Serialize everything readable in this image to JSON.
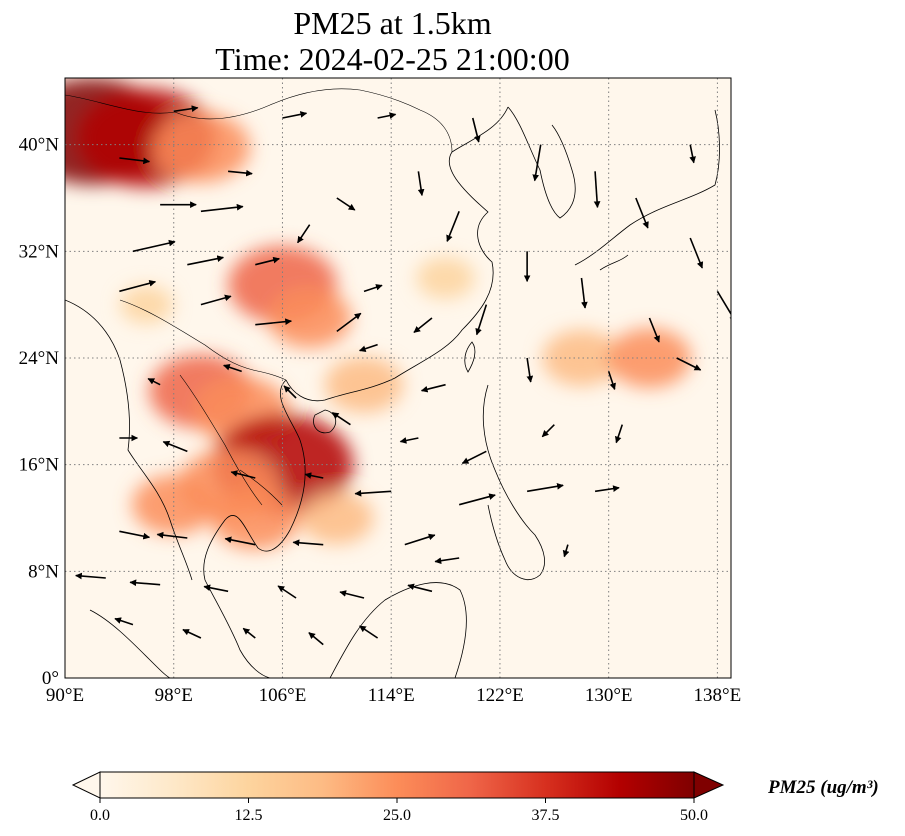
{
  "title": {
    "line1": "PM25 at 1.5km",
    "line2": "Time: 2024-02-25 21:00:00"
  },
  "map": {
    "lon_range": [
      90,
      139
    ],
    "lat_range": [
      0,
      45
    ],
    "xticks": [
      {
        "value": 90,
        "label": "90°E"
      },
      {
        "value": 98,
        "label": "98°E"
      },
      {
        "value": 106,
        "label": "106°E"
      },
      {
        "value": 114,
        "label": "114°E"
      },
      {
        "value": 122,
        "label": "122°E"
      },
      {
        "value": 130,
        "label": "130°E"
      },
      {
        "value": 138,
        "label": "138°E"
      }
    ],
    "yticks": [
      {
        "value": 0,
        "label": "0°"
      },
      {
        "value": 8,
        "label": "8°N"
      },
      {
        "value": 16,
        "label": "16°N"
      },
      {
        "value": 24,
        "label": "24°N"
      },
      {
        "value": 32,
        "label": "32°N"
      },
      {
        "value": 40,
        "label": "40°N"
      }
    ],
    "gridlines": "dotted",
    "variable": "PM25",
    "level": "1.5km"
  },
  "colorbar": {
    "label": "PM25 (ug/m³)",
    "ticks": [
      {
        "value": 0,
        "label": "0.0"
      },
      {
        "value": 12.5,
        "label": "12.5"
      },
      {
        "value": 25,
        "label": "25.0"
      },
      {
        "value": 37.5,
        "label": "37.5"
      },
      {
        "value": 50,
        "label": "50.0"
      }
    ],
    "range": [
      0,
      50
    ],
    "colormap": "OrRd",
    "colors": [
      "#fff7ec",
      "#fee8c8",
      "#fdd49e",
      "#fdbb84",
      "#fc8d59",
      "#ef6548",
      "#d7301f",
      "#b30000",
      "#7f0000"
    ],
    "extend": "both"
  },
  "pm_hotspots": [
    {
      "lon": 92,
      "lat": 41,
      "value": 48
    },
    {
      "lon": 96,
      "lat": 40.5,
      "value": 44
    },
    {
      "lon": 100,
      "lat": 39.8,
      "value": 28
    },
    {
      "lon": 106,
      "lat": 29.5,
      "value": 32
    },
    {
      "lon": 108,
      "lat": 27,
      "value": 22
    },
    {
      "lon": 100,
      "lat": 21.5,
      "value": 30
    },
    {
      "lon": 103,
      "lat": 20,
      "value": 27
    },
    {
      "lon": 106,
      "lat": 16,
      "value": 45
    },
    {
      "lon": 102,
      "lat": 14.5,
      "value": 28
    },
    {
      "lon": 104,
      "lat": 12,
      "value": 24
    },
    {
      "lon": 98,
      "lat": 13,
      "value": 22
    },
    {
      "lon": 112,
      "lat": 22,
      "value": 20
    },
    {
      "lon": 128,
      "lat": 24,
      "value": 20
    },
    {
      "lon": 133,
      "lat": 24,
      "value": 22
    },
    {
      "lon": 118,
      "lat": 30,
      "value": 12
    },
    {
      "lon": 96,
      "lat": 28,
      "value": 10
    },
    {
      "lon": 110,
      "lat": 12,
      "value": 18
    }
  ],
  "wind_arrows": [
    {
      "lon": 94,
      "lat": 39,
      "u": 2.5,
      "v": -0.3
    },
    {
      "lon": 97,
      "lat": 35.5,
      "u": 3,
      "v": 0
    },
    {
      "lon": 100,
      "lat": 35,
      "u": 3.5,
      "v": 0.4
    },
    {
      "lon": 95,
      "lat": 32,
      "u": 3.5,
      "v": 0.8
    },
    {
      "lon": 99,
      "lat": 31,
      "u": 3,
      "v": 0.6
    },
    {
      "lon": 94,
      "lat": 29,
      "u": 3,
      "v": 0.8
    },
    {
      "lon": 100,
      "lat": 28,
      "u": 2.5,
      "v": 0.7
    },
    {
      "lon": 104,
      "lat": 26.5,
      "u": 3,
      "v": 0.3
    },
    {
      "lon": 102,
      "lat": 38,
      "u": 2,
      "v": -0.2
    },
    {
      "lon": 110,
      "lat": 36,
      "u": 1.5,
      "v": -1
    },
    {
      "lon": 116,
      "lat": 38,
      "u": 0.3,
      "v": -2
    },
    {
      "lon": 119,
      "lat": 35,
      "u": -1,
      "v": -2.5
    },
    {
      "lon": 125,
      "lat": 40,
      "u": -0.5,
      "v": -3
    },
    {
      "lon": 129,
      "lat": 38,
      "u": 0.2,
      "v": -3
    },
    {
      "lon": 132,
      "lat": 36,
      "u": 1,
      "v": -2.5
    },
    {
      "lon": 136,
      "lat": 33,
      "u": 1,
      "v": -2.5
    },
    {
      "lon": 138,
      "lat": 29,
      "u": 1.5,
      "v": -2.5
    },
    {
      "lon": 133,
      "lat": 27,
      "u": 0.8,
      "v": -2
    },
    {
      "lon": 128,
      "lat": 30,
      "u": 0.3,
      "v": -2.5
    },
    {
      "lon": 124,
      "lat": 32,
      "u": 0,
      "v": -2.5
    },
    {
      "lon": 121,
      "lat": 28,
      "u": -0.8,
      "v": -2.5
    },
    {
      "lon": 117,
      "lat": 27,
      "u": -1.5,
      "v": -1.2
    },
    {
      "lon": 112,
      "lat": 29,
      "u": 1.5,
      "v": 0.5
    },
    {
      "lon": 113,
      "lat": 25,
      "u": -1.5,
      "v": -0.5
    },
    {
      "lon": 118,
      "lat": 22,
      "u": -2,
      "v": -0.5
    },
    {
      "lon": 124,
      "lat": 24,
      "u": 0.3,
      "v": -2
    },
    {
      "lon": 130,
      "lat": 23,
      "u": 0.5,
      "v": -1.5
    },
    {
      "lon": 135,
      "lat": 24,
      "u": 2,
      "v": -1
    },
    {
      "lon": 126,
      "lat": 19,
      "u": -1,
      "v": -1
    },
    {
      "lon": 121,
      "lat": 17,
      "u": -2,
      "v": -1
    },
    {
      "lon": 116,
      "lat": 18,
      "u": -1.5,
      "v": -0.3
    },
    {
      "lon": 111,
      "lat": 19,
      "u": -1.5,
      "v": 1
    },
    {
      "lon": 107,
      "lat": 21,
      "u": -1,
      "v": 1
    },
    {
      "lon": 103,
      "lat": 23,
      "u": -1.5,
      "v": 0.5
    },
    {
      "lon": 97,
      "lat": 22,
      "u": -1,
      "v": 0.5
    },
    {
      "lon": 94,
      "lat": 18,
      "u": 1.5,
      "v": 0
    },
    {
      "lon": 99,
      "lat": 17,
      "u": -2,
      "v": 0.8
    },
    {
      "lon": 104,
      "lat": 15,
      "u": -2,
      "v": 0.5
    },
    {
      "lon": 109,
      "lat": 15,
      "u": -1.5,
      "v": 0.3
    },
    {
      "lon": 114,
      "lat": 14,
      "u": -3,
      "v": -0.2
    },
    {
      "lon": 119,
      "lat": 13,
      "u": 3,
      "v": 0.8
    },
    {
      "lon": 124,
      "lat": 14,
      "u": 3,
      "v": 0.5
    },
    {
      "lon": 129,
      "lat": 14,
      "u": 2,
      "v": 0.3
    },
    {
      "lon": 94,
      "lat": 11,
      "u": 2.5,
      "v": -0.5
    },
    {
      "lon": 99,
      "lat": 10.5,
      "u": -2.5,
      "v": 0.3
    },
    {
      "lon": 104,
      "lat": 10,
      "u": -2.5,
      "v": 0.5
    },
    {
      "lon": 109,
      "lat": 10,
      "u": -2.5,
      "v": 0.2
    },
    {
      "lon": 115,
      "lat": 10,
      "u": 2.5,
      "v": 0.8
    },
    {
      "lon": 119,
      "lat": 9,
      "u": -2,
      "v": -0.3
    },
    {
      "lon": 93,
      "lat": 7.5,
      "u": -2.5,
      "v": 0.2
    },
    {
      "lon": 97,
      "lat": 7,
      "u": -2.5,
      "v": 0.2
    },
    {
      "lon": 102,
      "lat": 6.5,
      "u": -2,
      "v": 0.4
    },
    {
      "lon": 107,
      "lat": 6,
      "u": -1.5,
      "v": 1
    },
    {
      "lon": 112,
      "lat": 6,
      "u": -2,
      "v": 0.5
    },
    {
      "lon": 117,
      "lat": 6.5,
      "u": -2,
      "v": 0.5
    },
    {
      "lon": 95,
      "lat": 4,
      "u": -1.5,
      "v": 0.5
    },
    {
      "lon": 100,
      "lat": 3,
      "u": -1.5,
      "v": 0.7
    },
    {
      "lon": 104,
      "lat": 3,
      "u": -1,
      "v": 0.8
    },
    {
      "lon": 109,
      "lat": 2.5,
      "u": -1.2,
      "v": 1
    },
    {
      "lon": 113,
      "lat": 3,
      "u": -1.5,
      "v": 1
    },
    {
      "lon": 108,
      "lat": 34,
      "u": -1,
      "v": -1.5
    },
    {
      "lon": 104,
      "lat": 31,
      "u": 2,
      "v": 0.5
    },
    {
      "lon": 110,
      "lat": 26,
      "u": 2,
      "v": 1.5
    },
    {
      "lon": 131,
      "lat": 19,
      "u": -0.5,
      "v": -1.5
    },
    {
      "lon": 127,
      "lat": 10,
      "u": -0.3,
      "v": -1
    },
    {
      "lon": 98,
      "lat": 42.5,
      "u": 2,
      "v": 0.3
    },
    {
      "lon": 106,
      "lat": 42,
      "u": 2,
      "v": 0.4
    },
    {
      "lon": 113,
      "lat": 42,
      "u": 1.5,
      "v": 0.3
    },
    {
      "lon": 120,
      "lat": 42,
      "u": 0.5,
      "v": -2
    },
    {
      "lon": 136,
      "lat": 40,
      "u": 0.3,
      "v": -1.5
    }
  ]
}
